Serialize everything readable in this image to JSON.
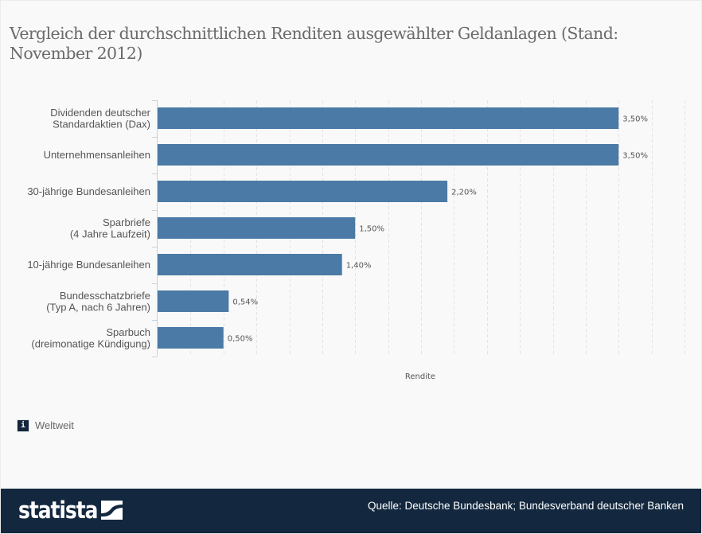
{
  "title": "Vergleich der durchschnittlichen Renditen ausgewählter Geldanlagen (Stand: November 2012)",
  "chart_data": {
    "type": "bar",
    "orientation": "horizontal",
    "title": "Vergleich der durchschnittlichen Renditen ausgewählter Geldanlagen (Stand: November 2012)",
    "categories": [
      [
        "Dividenden deutscher",
        "Standardaktien (Dax)"
      ],
      [
        "Unternehmensanleihen"
      ],
      [
        "30-jährige Bundesanleihen"
      ],
      [
        "Sparbriefe",
        "(4 Jahre Laufzeit)"
      ],
      [
        "10-jährige Bundesanleihen"
      ],
      [
        "Bundesschatzbriefe",
        "(Typ A, nach 6 Jahren)"
      ],
      [
        "Sparbuch",
        "(dreimonatige Kündigung)"
      ]
    ],
    "values": [
      3.5,
      3.5,
      2.2,
      1.5,
      1.4,
      0.54,
      0.5
    ],
    "value_labels": [
      "3,50%",
      "3,50%",
      "2,20%",
      "1,50%",
      "1,40%",
      "0,54%",
      "0,50%"
    ],
    "xlabel": "Rendite",
    "ylabel": "",
    "xlim": [
      0,
      4
    ],
    "grid_step": 0.25,
    "grid": true,
    "tick_labels_shown": false,
    "bar_color": "#4a7aa5",
    "legend": "none"
  },
  "info": {
    "icon": "info-icon",
    "icon_glyph": "i",
    "text": "Weltweit"
  },
  "footer": {
    "logo_text": "statista",
    "source": "Quelle: Deutsche Bundesbank; Bundesverband deutscher Banken"
  },
  "colors": {
    "background": "#f9f9f9",
    "footer": "#13283f",
    "bar": "#4a7aa5",
    "text": "#555555"
  }
}
